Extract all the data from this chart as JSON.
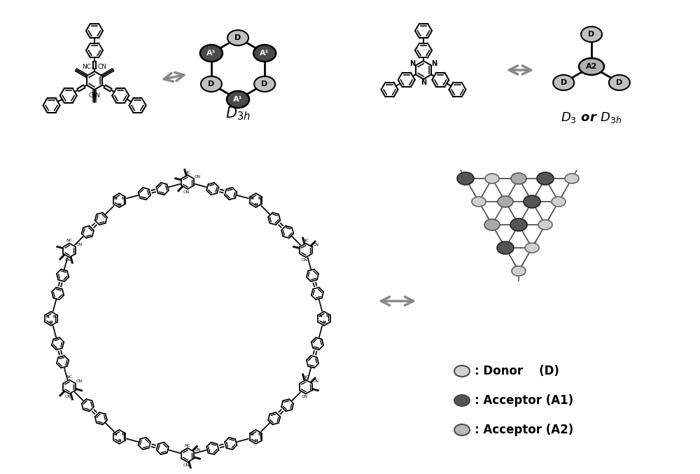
{
  "bg_color": "#ffffff",
  "arrow_color": "#888888",
  "arrow_lw": 2.5,
  "d3h_label": "D_{3h}",
  "d3_label": "D_{3} or D_{3h}",
  "legend_items": [
    {
      "color": "#d0d0d0",
      "edge": "#555555",
      "label": ": Donor    (D)"
    },
    {
      "color": "#555555",
      "edge": "#222222",
      "label": ": Acceptor (A1)"
    },
    {
      "color": "#b8b8b8",
      "edge": "#555555",
      "label": ": Acceptor (A2)"
    }
  ],
  "figsize": [
    10.0,
    6.77
  ],
  "dpi": 100
}
